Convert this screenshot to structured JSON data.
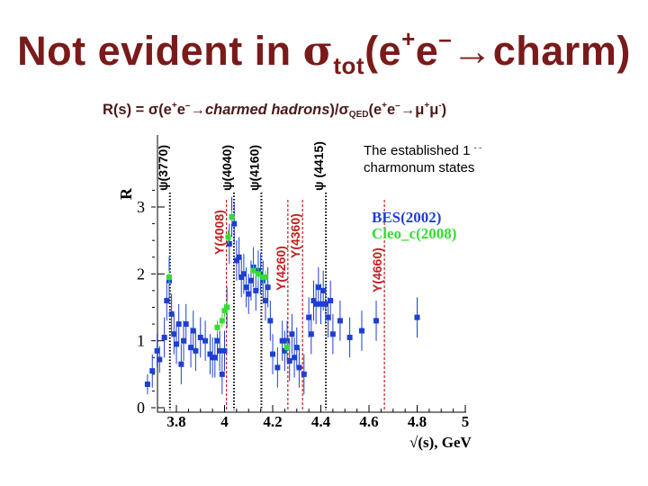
{
  "title": {
    "main": "Not evident in ",
    "sigma": "σ",
    "sub": "tot",
    "paren_open": "(e",
    "sup_plus": "+",
    "e": "e",
    "sup_minus": "–",
    "rest": "→charm)"
  },
  "subtitle": {
    "lead": "R(s) = σ(e",
    "sup1": "+",
    "e1": "e",
    "sup2": "–",
    "arrow": "→",
    "italic": "charmed  hadrons",
    "mid": ")/σ",
    "sub": "QED",
    "paren": "(e",
    "sup3": "+",
    "e2": "e",
    "sup4": "–",
    "arrow2": "→μ",
    "sup5": "+",
    "mu": "μ",
    "sup6": "-",
    "close": ")"
  },
  "note": {
    "line1": "The established 1",
    "dots": "- -",
    "line2": "charmonum states"
  },
  "colors": {
    "title": "#7a1a1a",
    "bes": "#1f3fd1",
    "cleo": "#33dd33",
    "resonance_red": "#c02020",
    "resonance_black": "#000000",
    "axis": "#000000"
  },
  "chart_data": {
    "type": "scatter",
    "xlabel": "√(s), GeV",
    "ylabel": "R",
    "xlim": [
      3.65,
      5.0
    ],
    "ylim": [
      0,
      3.5
    ],
    "x_ticks": [
      "3.8",
      "4",
      "4.2",
      "4.4",
      "4.6",
      "4.8",
      "5"
    ],
    "x_tick_values": [
      3.8,
      4.0,
      4.2,
      4.4,
      4.6,
      4.8,
      5.0
    ],
    "y_ticks": [
      "0",
      "1",
      "2",
      "3"
    ],
    "y_tick_values": [
      0,
      1,
      2,
      3
    ],
    "legend": [
      {
        "label": "BES(2002)",
        "color": "#1f3fd1"
      },
      {
        "label": "Cleo_c(2008)",
        "color": "#33dd33"
      }
    ],
    "resonances": [
      {
        "label": "ψ(3770)",
        "x": 3.773,
        "style": "black"
      },
      {
        "label": "ψ(4040)",
        "x": 4.039,
        "style": "black"
      },
      {
        "label": "ψ(4160)",
        "x": 4.153,
        "style": "black"
      },
      {
        "label": "ψ (4415)",
        "x": 4.421,
        "style": "black"
      },
      {
        "label": "Y(4008)",
        "x": 4.008,
        "style": "red"
      },
      {
        "label": "Y(4260)",
        "x": 4.263,
        "style": "red"
      },
      {
        "label": "Y(4360)",
        "x": 4.324,
        "style": "red"
      },
      {
        "label": "Y(4660)",
        "x": 4.664,
        "style": "red"
      }
    ],
    "series": [
      {
        "name": "BES(2002)",
        "points": [
          [
            3.68,
            0.35,
            0.15
          ],
          [
            3.7,
            0.55,
            0.25
          ],
          [
            3.72,
            0.85,
            0.25
          ],
          [
            3.73,
            0.72,
            0.2
          ],
          [
            3.75,
            1.05,
            0.3
          ],
          [
            3.76,
            1.6,
            0.3
          ],
          [
            3.77,
            1.9,
            0.35
          ],
          [
            3.78,
            1.4,
            0.3
          ],
          [
            3.79,
            1.1,
            0.3
          ],
          [
            3.8,
            0.95,
            0.3
          ],
          [
            3.81,
            1.25,
            0.3
          ],
          [
            3.82,
            0.65,
            0.3
          ],
          [
            3.83,
            1.0,
            0.3
          ],
          [
            3.84,
            1.25,
            0.3
          ],
          [
            3.86,
            0.9,
            0.3
          ],
          [
            3.87,
            1.15,
            0.3
          ],
          [
            3.88,
            0.85,
            0.3
          ],
          [
            3.9,
            1.05,
            0.3
          ],
          [
            3.92,
            1.0,
            0.3
          ],
          [
            3.94,
            0.8,
            0.3
          ],
          [
            3.95,
            0.75,
            0.3
          ],
          [
            3.96,
            0.75,
            0.3
          ],
          [
            3.97,
            1.0,
            0.3
          ],
          [
            3.98,
            0.85,
            0.3
          ],
          [
            3.99,
            0.5,
            0.3
          ],
          [
            4.0,
            0.85,
            0.3
          ],
          [
            4.01,
            1.5,
            0.3
          ],
          [
            4.02,
            2.45,
            0.3
          ],
          [
            4.03,
            2.85,
            0.3
          ],
          [
            4.04,
            2.75,
            0.3
          ],
          [
            4.05,
            2.2,
            0.3
          ],
          [
            4.06,
            2.25,
            0.3
          ],
          [
            4.07,
            1.95,
            0.3
          ],
          [
            4.08,
            2.0,
            0.3
          ],
          [
            4.09,
            1.8,
            0.3
          ],
          [
            4.1,
            1.7,
            0.3
          ],
          [
            4.11,
            1.9,
            0.3
          ],
          [
            4.12,
            2.1,
            0.3
          ],
          [
            4.13,
            1.75,
            0.3
          ],
          [
            4.14,
            2.05,
            0.3
          ],
          [
            4.15,
            2.0,
            0.3
          ],
          [
            4.16,
            1.9,
            0.3
          ],
          [
            4.17,
            1.6,
            0.3
          ],
          [
            4.18,
            1.8,
            0.3
          ],
          [
            4.19,
            1.3,
            0.3
          ],
          [
            4.2,
            0.8,
            0.3
          ],
          [
            4.22,
            0.6,
            0.3
          ],
          [
            4.24,
            1.0,
            0.3
          ],
          [
            4.25,
            0.85,
            0.3
          ],
          [
            4.26,
            1.0,
            0.3
          ],
          [
            4.27,
            0.7,
            0.3
          ],
          [
            4.28,
            1.1,
            0.3
          ],
          [
            4.29,
            0.75,
            0.3
          ],
          [
            4.3,
            0.9,
            0.3
          ],
          [
            4.31,
            0.6,
            0.3
          ],
          [
            4.33,
            0.5,
            0.3
          ],
          [
            4.35,
            1.35,
            0.3
          ],
          [
            4.36,
            1.1,
            0.3
          ],
          [
            4.37,
            1.6,
            0.3
          ],
          [
            4.38,
            1.55,
            0.3
          ],
          [
            4.39,
            1.8,
            0.3
          ],
          [
            4.4,
            1.55,
            0.3
          ],
          [
            4.41,
            1.75,
            0.3
          ],
          [
            4.42,
            1.55,
            0.3
          ],
          [
            4.43,
            1.35,
            0.3
          ],
          [
            4.44,
            1.6,
            0.3
          ],
          [
            4.45,
            1.1,
            0.3
          ],
          [
            4.48,
            1.3,
            0.3
          ],
          [
            4.52,
            1.05,
            0.3
          ],
          [
            4.57,
            1.15,
            0.3
          ],
          [
            4.63,
            1.3,
            0.3
          ],
          [
            4.8,
            1.35,
            0.3
          ]
        ]
      },
      {
        "name": "Cleo_c(2008)",
        "points": [
          [
            3.77,
            1.95,
            0.1
          ],
          [
            3.97,
            1.2,
            0.1
          ],
          [
            3.99,
            1.3,
            0.1
          ],
          [
            4.0,
            1.45,
            0.1
          ],
          [
            4.01,
            1.5,
            0.1
          ],
          [
            4.015,
            2.55,
            0.1
          ],
          [
            4.03,
            2.85,
            0.1
          ],
          [
            4.12,
            2.05,
            0.1
          ],
          [
            4.14,
            2.0,
            0.1
          ],
          [
            4.16,
            1.95,
            0.1
          ],
          [
            4.17,
            1.95,
            0.1
          ],
          [
            4.26,
            0.9,
            0.1
          ]
        ]
      }
    ]
  }
}
